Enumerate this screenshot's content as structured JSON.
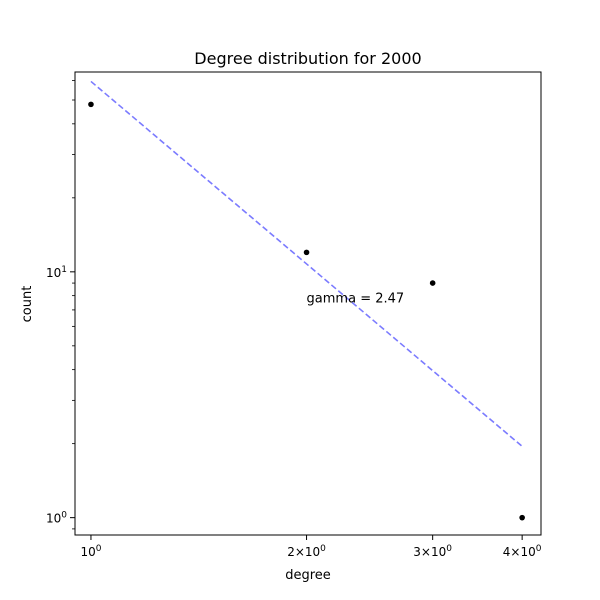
{
  "chart_data": {
    "type": "scatter",
    "title": "Degree distribution for 2000",
    "xlabel": "degree",
    "ylabel": "count",
    "xscale": "log",
    "yscale": "log",
    "xlim": [
      0.95,
      4.25
    ],
    "ylim": [
      0.85,
      65
    ],
    "grid": false,
    "points": [
      {
        "x": 1,
        "y": 48
      },
      {
        "x": 2,
        "y": 12
      },
      {
        "x": 3,
        "y": 9
      },
      {
        "x": 4,
        "y": 1
      }
    ],
    "fit_line": {
      "x": [
        1,
        4
      ],
      "y": [
        59.5,
        1.95
      ],
      "color": "#7b7bff",
      "style": "dashed"
    },
    "annotation": {
      "text": "gamma = 2.47",
      "x": 2.0,
      "y": 7.8,
      "color": "#0000ff"
    },
    "x_ticks": [
      {
        "value": 1,
        "base": "10",
        "exp": "0",
        "prefix": ""
      },
      {
        "value": 2,
        "base": "10",
        "exp": "0",
        "prefix": "2×"
      },
      {
        "value": 3,
        "base": "10",
        "exp": "0",
        "prefix": "3×"
      },
      {
        "value": 4,
        "base": "10",
        "exp": "0",
        "prefix": "4×"
      }
    ],
    "y_ticks": [
      {
        "value": 1,
        "base": "10",
        "exp": "0"
      },
      {
        "value": 10,
        "base": "10",
        "exp": "1"
      }
    ]
  }
}
